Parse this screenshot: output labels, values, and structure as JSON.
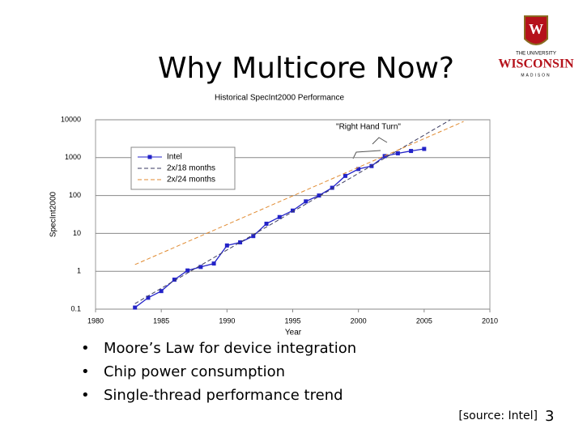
{
  "slide": {
    "title": "Why Multicore Now?",
    "bullets": [
      "Moore’s Law for device integration",
      "Chip power consumption",
      "Single-thread performance trend"
    ],
    "source": "[source: Intel]",
    "page_number": "3",
    "logo": {
      "line1": "THE UNIVERSITY",
      "line2": "WISCONSIN",
      "line3": "MADISON"
    }
  },
  "chart_data": {
    "type": "line",
    "title": "Historical SpecInt2000 Performance",
    "x_label": "Year",
    "y_label": "SpecInt2000",
    "annotation": "\"Right Hand Turn\"",
    "xlim": [
      1980,
      2010
    ],
    "xticks": [
      1980,
      1985,
      1990,
      1995,
      2000,
      2005,
      2010
    ],
    "ylim": [
      0.1,
      10000
    ],
    "yticks": [
      0.1,
      1,
      10,
      100,
      1000,
      10000
    ],
    "y_scale": "log",
    "grid": true,
    "legend": "upper-left",
    "series": [
      {
        "name": "Intel",
        "color": "#2323c8",
        "line_style": "solid",
        "marker": "square",
        "x": [
          1983,
          1984,
          1985,
          1986,
          1987,
          1988,
          1989,
          1990,
          1991,
          1992,
          1993,
          1994,
          1995,
          1996,
          1997,
          1998,
          1999,
          2000,
          2001,
          2002,
          2003,
          2004,
          2005
        ],
        "values": [
          0.11,
          0.2,
          0.3,
          0.6,
          1.05,
          1.3,
          1.6,
          4.8,
          5.8,
          8.5,
          18,
          27,
          40,
          70,
          100,
          160,
          330,
          500,
          600,
          1100,
          1300,
          1500,
          1700
        ]
      },
      {
        "name": "2x/18 months",
        "color": "#3a3a60",
        "line_style": "dashed",
        "marker": "none",
        "x": [
          1983,
          2007
        ],
        "values": [
          0.14,
          10000
        ]
      },
      {
        "name": "2x/24 months",
        "color": "#e08a30",
        "line_style": "dashed",
        "marker": "none",
        "x": [
          1983,
          2008
        ],
        "values": [
          1.5,
          9000
        ]
      }
    ]
  }
}
